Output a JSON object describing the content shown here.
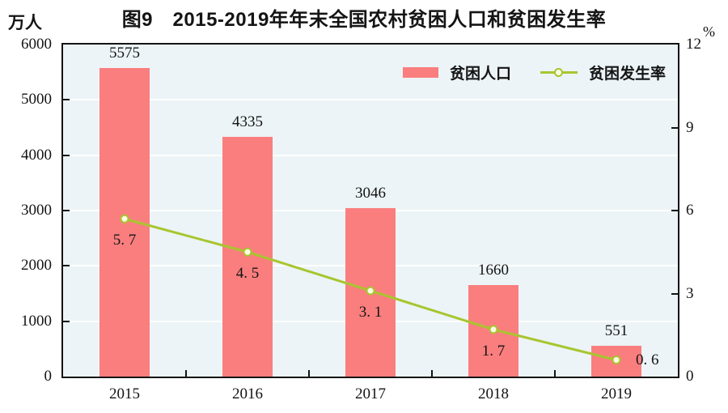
{
  "title": "图9　2015-2019年年末全国农村贫困人口和贫困发生率",
  "axis_unit_left": "万人",
  "axis_unit_right": "%",
  "legend": {
    "bar_label": "贫困人口",
    "line_label": "贫困发生率"
  },
  "chart_data": {
    "type": "bar+line",
    "title": "图9　2015-2019年年末全国农村贫困人口和贫困发生率",
    "categories": [
      "2015",
      "2016",
      "2017",
      "2018",
      "2019"
    ],
    "series": [
      {
        "name": "贫困人口",
        "type": "bar",
        "axis": "left",
        "values": [
          5575,
          4335,
          3046,
          1660,
          551
        ],
        "labels": [
          "5575",
          "4335",
          "3046",
          "1660",
          "551"
        ]
      },
      {
        "name": "贫困发生率",
        "type": "line",
        "axis": "right",
        "values": [
          5.7,
          4.5,
          3.1,
          1.7,
          0.6
        ],
        "labels": [
          "5. 7",
          "4. 5",
          "3. 1",
          "1. 7",
          "0. 6"
        ]
      }
    ],
    "left_axis": {
      "unit": "万人",
      "range": [
        0,
        6000
      ],
      "ticks": [
        0,
        1000,
        2000,
        3000,
        4000,
        5000,
        6000
      ]
    },
    "right_axis": {
      "unit": "%",
      "range": [
        0,
        12
      ],
      "ticks": [
        0,
        3,
        6,
        9,
        12
      ]
    },
    "grid": true,
    "legend_position": "top-right-inside",
    "colors": {
      "bar": "#fa7e7e",
      "line": "#a9c52f",
      "marker_fill": "#fcffe6",
      "plot_bg": "#ecf4f7",
      "grid": "#ffffff",
      "axis": "#141414",
      "text": "#141414"
    }
  }
}
